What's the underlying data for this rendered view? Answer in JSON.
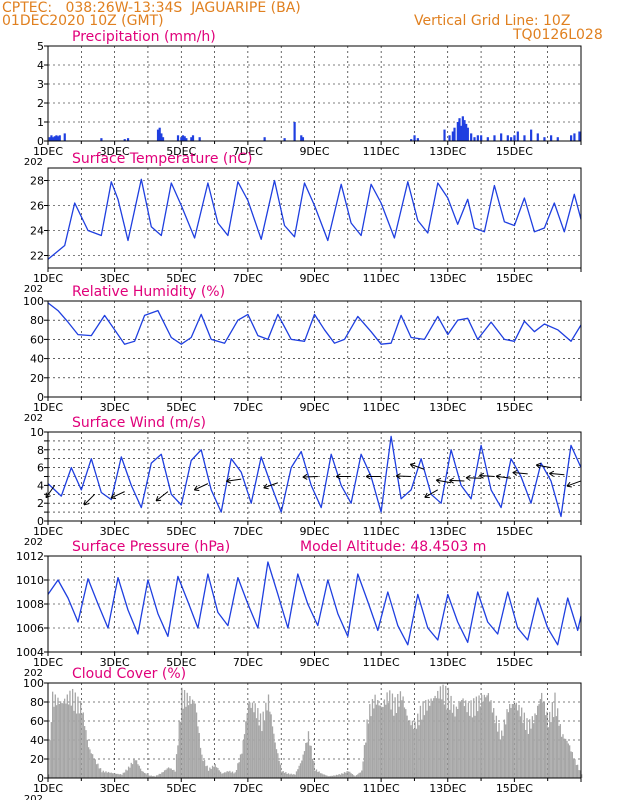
{
  "header": {
    "left_line1": "CPTEC:   038:26W-13:34S  JAGUARIPE (BA)",
    "left_line2": "01DEC2020 10Z (GMT)",
    "right_line1": "Vertical Grid Line: 10Z",
    "right_line2": "TQ0126L028"
  },
  "colors": {
    "header": "#e08020",
    "title": "#e0007a",
    "line": "#1f3fe0",
    "bar": "#1f3fe0",
    "cloud": "#a6a6a6",
    "grid": "#000000"
  },
  "x_labels": [
    "1DEC",
    "3DEC",
    "5DEC",
    "7DEC",
    "9DEC",
    "11DEC",
    "13DEC",
    "15DEC"
  ],
  "x_stub": "202",
  "chart_data": [
    {
      "id": "precip",
      "type": "bar",
      "title": "Precipitation (mm/h)",
      "ylim": [
        0,
        5
      ],
      "yticks": [
        0,
        1,
        2,
        3,
        4,
        5
      ],
      "yticks_shown": [
        "0",
        "1",
        "2",
        "3",
        "4",
        "5"
      ],
      "x": [
        0.05,
        0.1,
        0.15,
        0.2,
        0.25,
        0.3,
        0.35,
        0.5,
        1.6,
        2.3,
        2.4,
        3.3,
        3.35,
        3.4,
        3.45,
        3.9,
        4.0,
        4.05,
        4.1,
        4.15,
        4.3,
        4.35,
        4.55,
        6.5,
        7.1,
        7.4,
        7.6,
        7.65,
        10.9,
        11.0,
        11.1,
        11.9,
        12.05,
        12.15,
        12.2,
        12.3,
        12.35,
        12.4,
        12.45,
        12.5,
        12.55,
        12.6,
        12.7,
        12.8,
        12.9,
        13.0,
        13.2,
        13.4,
        13.6,
        13.8,
        13.9,
        14.0,
        14.1,
        14.3,
        14.5,
        14.7,
        14.9,
        15.1,
        15.3,
        15.7,
        15.8,
        15.95
      ],
      "values": [
        0.2,
        0.3,
        0.2,
        0.25,
        0.3,
        0.25,
        0.3,
        0.4,
        0.15,
        0.1,
        0.15,
        0.6,
        0.7,
        0.4,
        0.2,
        0.3,
        0.2,
        0.3,
        0.25,
        0.15,
        0.2,
        0.3,
        0.2,
        0.2,
        0.15,
        1.0,
        0.3,
        0.2,
        0.1,
        0.3,
        0.15,
        0.6,
        0.3,
        0.5,
        0.7,
        1.0,
        1.2,
        0.8,
        1.3,
        1.1,
        0.9,
        0.7,
        0.4,
        0.2,
        0.3,
        0.3,
        0.2,
        0.3,
        0.4,
        0.3,
        0.2,
        0.3,
        0.5,
        0.3,
        0.6,
        0.4,
        0.2,
        0.3,
        0.2,
        0.3,
        0.4,
        0.5
      ]
    },
    {
      "id": "temp",
      "type": "line",
      "title": "Surface Temperature (nC)",
      "ylim": [
        21,
        29
      ],
      "yticks": [
        22,
        24,
        26,
        28
      ],
      "yticks_shown": [
        "22",
        "24",
        "26",
        "28"
      ],
      "x": [
        0,
        0.5,
        0.8,
        1.2,
        1.6,
        1.9,
        2.1,
        2.4,
        2.8,
        3.1,
        3.4,
        3.7,
        4.0,
        4.4,
        4.8,
        5.1,
        5.4,
        5.7,
        6.0,
        6.4,
        6.8,
        7.1,
        7.4,
        7.7,
        8.0,
        8.4,
        8.8,
        9.1,
        9.4,
        9.7,
        10.0,
        10.4,
        10.8,
        11.1,
        11.4,
        11.7,
        12.0,
        12.3,
        12.6,
        12.8,
        13.1,
        13.4,
        13.7,
        14.0,
        14.3,
        14.6,
        14.9,
        15.2,
        15.5,
        15.8,
        16.0
      ],
      "values": [
        21.7,
        22.8,
        26.2,
        24.0,
        23.6,
        27.9,
        26.5,
        23.2,
        28.1,
        24.3,
        23.6,
        27.8,
        26.0,
        23.4,
        27.8,
        24.6,
        23.6,
        27.9,
        26.4,
        23.3,
        28.0,
        24.4,
        23.5,
        27.8,
        26.0,
        23.2,
        27.7,
        24.6,
        23.6,
        27.7,
        26.2,
        23.4,
        27.9,
        24.8,
        23.8,
        27.8,
        26.6,
        24.5,
        26.5,
        24.2,
        23.9,
        27.6,
        24.7,
        24.4,
        26.6,
        23.9,
        24.2,
        26.2,
        23.9,
        26.9,
        24.9
      ]
    },
    {
      "id": "rh",
      "type": "line",
      "title": "Relative Humidity (%)",
      "ylim": [
        0,
        100
      ],
      "yticks": [
        0,
        20,
        40,
        60,
        80,
        100
      ],
      "yticks_shown": [
        "0",
        "20",
        "40",
        "60",
        "80",
        "100"
      ],
      "x": [
        0,
        0.3,
        0.6,
        0.9,
        1.3,
        1.7,
        2.0,
        2.3,
        2.6,
        2.9,
        3.3,
        3.7,
        4.0,
        4.3,
        4.6,
        4.9,
        5.3,
        5.7,
        6.0,
        6.3,
        6.6,
        6.9,
        7.3,
        7.7,
        8.0,
        8.3,
        8.6,
        8.9,
        9.3,
        9.7,
        10.0,
        10.3,
        10.6,
        10.9,
        11.3,
        11.7,
        12.0,
        12.3,
        12.6,
        12.9,
        13.3,
        13.7,
        14.0,
        14.3,
        14.6,
        14.9,
        15.3,
        15.7,
        16.0
      ],
      "values": [
        98,
        90,
        78,
        65,
        64,
        85,
        70,
        55,
        58,
        85,
        90,
        62,
        55,
        62,
        86,
        60,
        56,
        80,
        86,
        64,
        60,
        86,
        60,
        58,
        86,
        70,
        56,
        60,
        84,
        68,
        55,
        56,
        85,
        62,
        60,
        84,
        65,
        80,
        82,
        60,
        78,
        60,
        58,
        79,
        68,
        76,
        70,
        58,
        75
      ]
    },
    {
      "id": "wind",
      "type": "line",
      "title": "Surface Wind (m/s)",
      "ylim": [
        0,
        10
      ],
      "yticks": [
        0,
        1,
        2,
        3,
        4,
        5,
        6,
        7,
        8,
        9,
        10
      ],
      "yticks_shown": [
        "0",
        "2",
        "4",
        "6",
        "8",
        "10"
      ],
      "x": [
        0,
        0.4,
        0.7,
        1.0,
        1.3,
        1.6,
        1.9,
        2.2,
        2.5,
        2.8,
        3.1,
        3.4,
        3.7,
        4.0,
        4.3,
        4.6,
        4.9,
        5.2,
        5.5,
        5.8,
        6.1,
        6.4,
        6.7,
        7.0,
        7.3,
        7.6,
        7.9,
        8.2,
        8.5,
        8.8,
        9.1,
        9.4,
        9.7,
        10.0,
        10.3,
        10.6,
        10.9,
        11.2,
        11.5,
        11.8,
        12.1,
        12.4,
        12.7,
        13.0,
        13.3,
        13.6,
        13.9,
        14.2,
        14.5,
        14.8,
        15.1,
        15.4,
        15.7,
        16.0
      ],
      "values": [
        4.2,
        2.8,
        6.0,
        3.5,
        7.0,
        3.2,
        2.4,
        7.2,
        4.0,
        1.5,
        6.5,
        7.5,
        3.0,
        1.8,
        6.8,
        8.0,
        3.5,
        1.0,
        7.0,
        5.5,
        2.0,
        7.2,
        4.0,
        1.0,
        6.0,
        7.8,
        4.0,
        1.5,
        7.5,
        4.0,
        2.0,
        7.5,
        5.0,
        1.0,
        9.5,
        2.5,
        3.5,
        7.0,
        3.0,
        2.0,
        8.0,
        4.0,
        2.5,
        8.5,
        3.5,
        1.5,
        7.0,
        5.0,
        2.0,
        6.5,
        4.5,
        0.5,
        8.5,
        6.0
      ],
      "arrows": [
        [
          0.2,
          4.0,
          235
        ],
        [
          1.4,
          3.0,
          225
        ],
        [
          2.3,
          3.3,
          205
        ],
        [
          3.6,
          3.3,
          218
        ],
        [
          4.8,
          4.2,
          205
        ],
        [
          5.8,
          4.7,
          188
        ],
        [
          6.9,
          4.3,
          200
        ],
        [
          8.1,
          5.0,
          182
        ],
        [
          9.1,
          5.0,
          180
        ],
        [
          10.0,
          5.0,
          180
        ],
        [
          10.9,
          5.0,
          178
        ],
        [
          11.3,
          5.8,
          160
        ],
        [
          11.7,
          3.5,
          210
        ],
        [
          12.1,
          4.3,
          170
        ],
        [
          12.5,
          4.5,
          178
        ],
        [
          13.0,
          4.8,
          178
        ],
        [
          13.4,
          5.0,
          176
        ],
        [
          13.9,
          4.8,
          172
        ],
        [
          14.4,
          5.3,
          175
        ],
        [
          15.1,
          6.0,
          170
        ],
        [
          15.5,
          5.2,
          175
        ],
        [
          16.0,
          4.5,
          200
        ]
      ]
    },
    {
      "id": "pres",
      "type": "line",
      "title": "Surface Pressure (hPa)",
      "subtitle": "Model Altitude: 48.4503 m",
      "ylim": [
        1004,
        1012
      ],
      "yticks": [
        1004,
        1006,
        1008,
        1010,
        1012
      ],
      "yticks_shown": [
        "1004",
        "1006",
        "1008",
        "1010",
        "1012"
      ],
      "x": [
        0,
        0.3,
        0.6,
        0.9,
        1.2,
        1.5,
        1.8,
        2.1,
        2.4,
        2.7,
        3.0,
        3.3,
        3.6,
        3.9,
        4.2,
        4.5,
        4.8,
        5.1,
        5.4,
        5.7,
        6.0,
        6.3,
        6.6,
        6.9,
        7.2,
        7.5,
        7.8,
        8.1,
        8.4,
        8.7,
        9.0,
        9.3,
        9.6,
        9.9,
        10.2,
        10.5,
        10.8,
        11.1,
        11.4,
        11.7,
        12.0,
        12.3,
        12.6,
        12.9,
        13.2,
        13.5,
        13.8,
        14.1,
        14.4,
        14.7,
        15.0,
        15.3,
        15.6,
        15.9,
        16.0
      ],
      "values": [
        1008.8,
        1010.0,
        1008.5,
        1006.5,
        1010.1,
        1008.0,
        1006.0,
        1010.2,
        1007.5,
        1005.5,
        1010.0,
        1007.2,
        1005.3,
        1010.3,
        1008.2,
        1006.0,
        1010.5,
        1007.3,
        1006.2,
        1010.2,
        1008.0,
        1006.0,
        1011.5,
        1008.8,
        1006.0,
        1010.5,
        1008.0,
        1006.2,
        1010.0,
        1007.2,
        1005.3,
        1010.5,
        1008.2,
        1005.8,
        1009.0,
        1006.2,
        1004.6,
        1008.8,
        1006.0,
        1005.0,
        1008.8,
        1006.5,
        1004.8,
        1009.0,
        1006.5,
        1005.5,
        1009.0,
        1006.0,
        1005.0,
        1008.5,
        1006.0,
        1004.6,
        1008.5,
        1005.8,
        1007.0
      ]
    },
    {
      "id": "cloud",
      "type": "area",
      "title": "Cloud Cover (%)",
      "ylim": [
        0,
        100
      ],
      "yticks": [
        0,
        20,
        40,
        60,
        80,
        100
      ],
      "yticks_shown": [
        "0",
        "20",
        "40",
        "60",
        "80",
        "100"
      ],
      "x": [
        0,
        0.1,
        0.4,
        0.7,
        1.0,
        1.2,
        1.4,
        1.6,
        2.0,
        2.2,
        2.4,
        2.6,
        2.8,
        3.0,
        3.2,
        3.4,
        3.6,
        3.8,
        4.0,
        4.2,
        4.4,
        4.6,
        4.8,
        5.0,
        5.2,
        5.4,
        5.6,
        5.8,
        6.0,
        6.2,
        6.4,
        6.6,
        6.8,
        7.0,
        7.2,
        7.4,
        7.6,
        7.8,
        8.0,
        8.2,
        8.4,
        8.6,
        8.8,
        9.0,
        9.2,
        9.4,
        9.6,
        9.8,
        10.0,
        10.2,
        10.4,
        10.6,
        10.8,
        11.0,
        11.2,
        11.4,
        11.6,
        11.8,
        12.0,
        12.2,
        12.4,
        12.6,
        12.8,
        13.0,
        13.2,
        13.4,
        13.6,
        13.8,
        14.0,
        14.2,
        14.4,
        14.6,
        14.8,
        15.0,
        15.2,
        15.4,
        15.6,
        15.8,
        16.0
      ],
      "values": [
        5,
        92,
        85,
        95,
        80,
        35,
        20,
        8,
        5,
        4,
        12,
        22,
        8,
        3,
        2,
        6,
        12,
        8,
        95,
        90,
        85,
        25,
        10,
        15,
        5,
        8,
        6,
        30,
        85,
        80,
        65,
        90,
        40,
        8,
        5,
        4,
        20,
        50,
        10,
        5,
        2,
        3,
        5,
        8,
        2,
        8,
        75,
        90,
        80,
        95,
        85,
        95,
        65,
        60,
        80,
        85,
        92,
        100,
        95,
        75,
        90,
        80,
        85,
        90,
        95,
        70,
        50,
        80,
        85,
        75,
        60,
        70,
        95,
        65,
        90,
        50,
        40,
        20,
        5
      ]
    }
  ]
}
